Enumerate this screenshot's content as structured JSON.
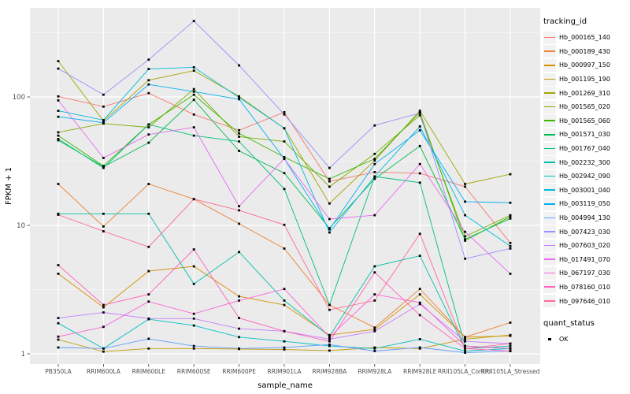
{
  "chart_data": {
    "type": "line",
    "title": "",
    "xlabel": "sample_name",
    "ylabel": "FPKM + 1",
    "y_scale": "log10",
    "y_ticks": [
      1,
      10,
      100
    ],
    "ylim": [
      0.9,
      480
    ],
    "grid": true,
    "legend_position": "right",
    "panel_bg": "#EBEBEB",
    "grid_color": "#FFFFFF",
    "point_color": "#000000",
    "point_shape": "square",
    "categories": [
      "PB350LA",
      "RRIM600LA",
      "RRIM600LE",
      "RRIM600SE",
      "RRIM600PE",
      "RRIM901LA",
      "RRIM928BA",
      "RRIM928LA",
      "RRIM928LE",
      "RRII105LA_Control",
      "RRII105LA_Stressed"
    ],
    "color_legend_title": "tracking_id",
    "shape_legend_title": "quant_status",
    "shape_legend_items": [
      "OK"
    ],
    "series": [
      {
        "name": "Hb_000165_140",
        "color": "#F8766D",
        "values": [
          101,
          84,
          107,
          73,
          55,
          76,
          22,
          26,
          25.4,
          20,
          7.3
        ]
      },
      {
        "name": "Hb_000189_430",
        "color": "#EA8335",
        "values": [
          21,
          9.8,
          21,
          16,
          10.3,
          6.6,
          2.4,
          1.6,
          3.2,
          1.35,
          1.75
        ]
      },
      {
        "name": "Hb_000997_150",
        "color": "#D89000",
        "values": [
          4.2,
          2.3,
          4.4,
          4.8,
          2.8,
          2.4,
          1.4,
          1.55,
          2.9,
          1.35,
          1.38
        ]
      },
      {
        "name": "Hb_001195_190",
        "color": "#C09B00",
        "values": [
          1.29,
          1.04,
          1.1,
          1.1,
          1.09,
          1.08,
          1.06,
          1.12,
          1.1,
          1.3,
          1.4
        ]
      },
      {
        "name": "Hb_001269_310",
        "color": "#A3A500",
        "values": [
          190,
          65,
          135,
          160,
          101,
          57,
          14.8,
          32,
          78,
          21,
          25
        ]
      },
      {
        "name": "Hb_001565_020",
        "color": "#7CAE00",
        "values": [
          53,
          62,
          58,
          115,
          49,
          45,
          20,
          36,
          72,
          8.2,
          12
        ]
      },
      {
        "name": "Hb_001565_060",
        "color": "#39B600",
        "values": [
          50,
          29,
          61,
          104,
          52,
          34,
          23,
          33,
          76,
          7.6,
          11.7
        ]
      },
      {
        "name": "Hb_001571_030",
        "color": "#00BB4E",
        "values": [
          46,
          28.6,
          44,
          95,
          38,
          25.5,
          9.5,
          23,
          41.5,
          7.8,
          11.3
        ]
      },
      {
        "name": "Hb_001767_040",
        "color": "#00BF7D",
        "values": [
          47,
          28,
          61,
          50,
          45,
          19.2,
          2.4,
          24,
          21.5,
          1.15,
          1.1
        ]
      },
      {
        "name": "Hb_002232_300",
        "color": "#00C1A7",
        "values": [
          12.3,
          12.3,
          12.3,
          3.5,
          6.2,
          2.6,
          1.37,
          4.8,
          5.8,
          1.1,
          1.15
        ]
      },
      {
        "name": "Hb_002942_090",
        "color": "#00BFC4",
        "values": [
          1.73,
          1.1,
          1.86,
          1.66,
          1.35,
          1.25,
          1.15,
          1.1,
          1.3,
          1.05,
          1.1
        ]
      },
      {
        "name": "Hb_003001_040",
        "color": "#00BADE",
        "values": [
          78,
          66,
          165,
          170,
          99,
          57,
          8.8,
          24,
          59,
          12,
          6.9
        ]
      },
      {
        "name": "Hb_003119_050",
        "color": "#00B0F6",
        "values": [
          70,
          63,
          125,
          110,
          96,
          33,
          9.3,
          30,
          55,
          15.3,
          15
        ]
      },
      {
        "name": "Hb_004994_130",
        "color": "#619CFF",
        "values": [
          1.12,
          1.1,
          1.31,
          1.15,
          1.1,
          1.12,
          1.18,
          1.05,
          1.12,
          1.02,
          1.05
        ]
      },
      {
        "name": "Hb_007423_030",
        "color": "#9590FF",
        "values": [
          166,
          104,
          195,
          390,
          176,
          73,
          28,
          60,
          75,
          5.5,
          6.6
        ]
      },
      {
        "name": "Hb_007603_020",
        "color": "#C77CFF",
        "values": [
          1.9,
          2.1,
          1.88,
          1.88,
          1.57,
          1.5,
          1.3,
          1.5,
          2.44,
          1.25,
          1.2
        ]
      },
      {
        "name": "Hb_017491_070",
        "color": "#E76BF3",
        "values": [
          94,
          33.5,
          51,
          58,
          14.1,
          33,
          11.2,
          12,
          30,
          8.9,
          4.2
        ]
      },
      {
        "name": "Hb_067197_030",
        "color": "#FA62DB",
        "values": [
          1.36,
          1.62,
          2.55,
          2.05,
          2.6,
          3.2,
          1.35,
          2.9,
          2.5,
          1.15,
          1.1
        ]
      },
      {
        "name": "Hb_078160_010",
        "color": "#FF62BC",
        "values": [
          4.9,
          2.4,
          2.9,
          6.5,
          1.9,
          1.5,
          1.25,
          4.3,
          2.0,
          1.1,
          1.05
        ]
      },
      {
        "name": "Hb_097646_010",
        "color": "#FF6A98",
        "values": [
          12.1,
          9.0,
          6.8,
          16,
          13.1,
          10.1,
          2.2,
          2.6,
          8.6,
          1.1,
          1.2
        ]
      }
    ]
  }
}
